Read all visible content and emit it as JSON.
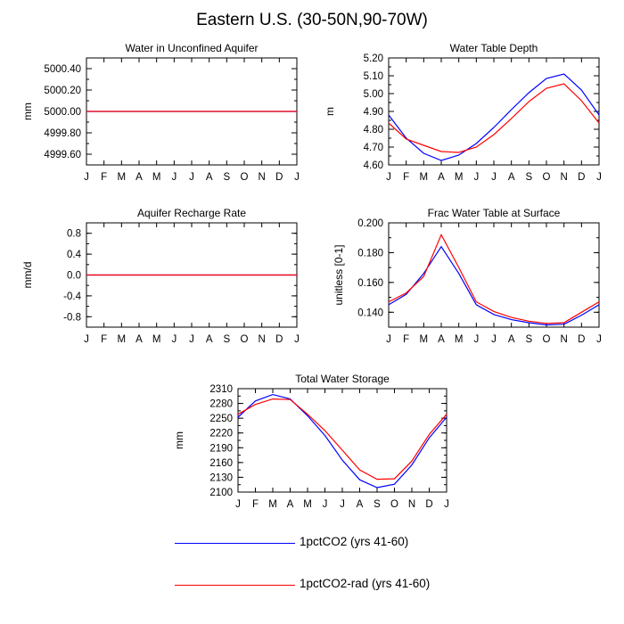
{
  "figure": {
    "title": "Eastern U.S. (30-50N,90-70W)",
    "colors": {
      "series_a": "#0000ff",
      "series_b": "#ff0000",
      "axis": "#000000"
    }
  },
  "legend": {
    "items": [
      {
        "label": "1pctCO2 (yrs 41-60)",
        "color": "#0000ff"
      },
      {
        "label": "1pctCO2-rad (yrs 41-60)",
        "color": "#ff0000"
      }
    ]
  },
  "chart_data": [
    {
      "type": "line",
      "title": "Water in Unconfined Aquifer",
      "ylabel": "mm",
      "ylim": [
        4999.5,
        5000.5
      ],
      "yticks": [
        4999.6,
        4999.8,
        5000.0,
        5000.2,
        5000.4
      ],
      "yticklabels": [
        "4999.60",
        "4999.80",
        "5000.00",
        "5000.20",
        "5000.40"
      ],
      "categories": [
        "J",
        "F",
        "M",
        "A",
        "M",
        "J",
        "J",
        "A",
        "S",
        "O",
        "N",
        "D",
        "J"
      ],
      "series": [
        {
          "name": "1pctCO2 (yrs 41-60)",
          "values": [
            5000,
            5000,
            5000,
            5000,
            5000,
            5000,
            5000,
            5000,
            5000,
            5000,
            5000,
            5000,
            5000
          ]
        },
        {
          "name": "1pctCO2-rad (yrs 41-60)",
          "values": [
            5000,
            5000,
            5000,
            5000,
            5000,
            5000,
            5000,
            5000,
            5000,
            5000,
            5000,
            5000,
            5000
          ]
        }
      ]
    },
    {
      "type": "line",
      "title": "Water Table Depth",
      "ylabel": "m",
      "ylim": [
        4.6,
        5.2
      ],
      "yticks": [
        4.6,
        4.7,
        4.8,
        4.9,
        5.0,
        5.1,
        5.2
      ],
      "yticklabels": [
        "4.60",
        "4.70",
        "4.80",
        "4.90",
        "5.00",
        "5.10",
        "5.20"
      ],
      "categories": [
        "J",
        "F",
        "M",
        "A",
        "M",
        "J",
        "J",
        "A",
        "S",
        "O",
        "N",
        "D",
        "J"
      ],
      "series": [
        {
          "name": "1pctCO2 (yrs 41-60)",
          "values": [
            4.88,
            4.75,
            4.665,
            4.625,
            4.655,
            4.72,
            4.81,
            4.91,
            5.005,
            5.085,
            5.11,
            5.02,
            4.88
          ]
        },
        {
          "name": "1pctCO2-rad (yrs 41-60)",
          "values": [
            4.835,
            4.745,
            4.71,
            4.675,
            4.67,
            4.7,
            4.77,
            4.86,
            4.955,
            5.03,
            5.055,
            4.96,
            4.835
          ]
        }
      ]
    },
    {
      "type": "line",
      "title": "Aquifer Recharge Rate",
      "ylabel": "mm/d",
      "ylim": [
        -1.0,
        1.0
      ],
      "yticks": [
        -0.8,
        -0.4,
        0.0,
        0.4,
        0.8
      ],
      "yticklabels": [
        "-0.8",
        "-0.4",
        "0.0",
        "0.4",
        "0.8"
      ],
      "categories": [
        "J",
        "F",
        "M",
        "A",
        "M",
        "J",
        "J",
        "A",
        "S",
        "O",
        "N",
        "D",
        "J"
      ],
      "series": [
        {
          "name": "1pctCO2 (yrs 41-60)",
          "values": [
            0,
            0,
            0,
            0,
            0,
            0,
            0,
            0,
            0,
            0,
            0,
            0,
            0
          ]
        },
        {
          "name": "1pctCO2-rad (yrs 41-60)",
          "values": [
            0,
            0,
            0,
            0,
            0,
            0,
            0,
            0,
            0,
            0,
            0,
            0,
            0
          ]
        }
      ]
    },
    {
      "type": "line",
      "title": "Frac Water Table at Surface",
      "ylabel": "unitless [0-1]",
      "ylim": [
        0.13,
        0.2
      ],
      "yticks": [
        0.14,
        0.16,
        0.18,
        0.2
      ],
      "yticklabels": [
        "0.140",
        "0.160",
        "0.180",
        "0.200"
      ],
      "categories": [
        "J",
        "F",
        "M",
        "A",
        "M",
        "J",
        "J",
        "A",
        "S",
        "O",
        "N",
        "D",
        "J"
      ],
      "series": [
        {
          "name": "1pctCO2 (yrs 41-60)",
          "values": [
            0.145,
            0.152,
            0.166,
            0.184,
            0.166,
            0.145,
            0.1385,
            0.135,
            0.133,
            0.1315,
            0.132,
            0.138,
            0.145
          ]
        },
        {
          "name": "1pctCO2-rad (yrs 41-60)",
          "values": [
            0.147,
            0.153,
            0.164,
            0.192,
            0.17,
            0.147,
            0.1405,
            0.1365,
            0.134,
            0.1325,
            0.133,
            0.14,
            0.147
          ]
        }
      ]
    },
    {
      "type": "line",
      "title": "Total Water Storage",
      "ylabel": "mm",
      "ylim": [
        2100,
        2310
      ],
      "yticks": [
        2100,
        2130,
        2160,
        2190,
        2220,
        2250,
        2280,
        2310
      ],
      "yticklabels": [
        "2100",
        "2130",
        "2160",
        "2190",
        "2220",
        "2250",
        "2280",
        "2310"
      ],
      "categories": [
        "J",
        "F",
        "M",
        "A",
        "M",
        "J",
        "J",
        "A",
        "S",
        "O",
        "N",
        "D",
        "J"
      ],
      "series": [
        {
          "name": "1pctCO2 (yrs 41-60)",
          "values": [
            2252,
            2285,
            2298,
            2289,
            2255,
            2215,
            2165,
            2125,
            2109,
            2116,
            2155,
            2210,
            2252
          ]
        },
        {
          "name": "1pctCO2-rad (yrs 41-60)",
          "values": [
            2258,
            2278,
            2289,
            2288,
            2258,
            2225,
            2185,
            2145,
            2126,
            2127,
            2163,
            2217,
            2258
          ]
        }
      ]
    }
  ]
}
